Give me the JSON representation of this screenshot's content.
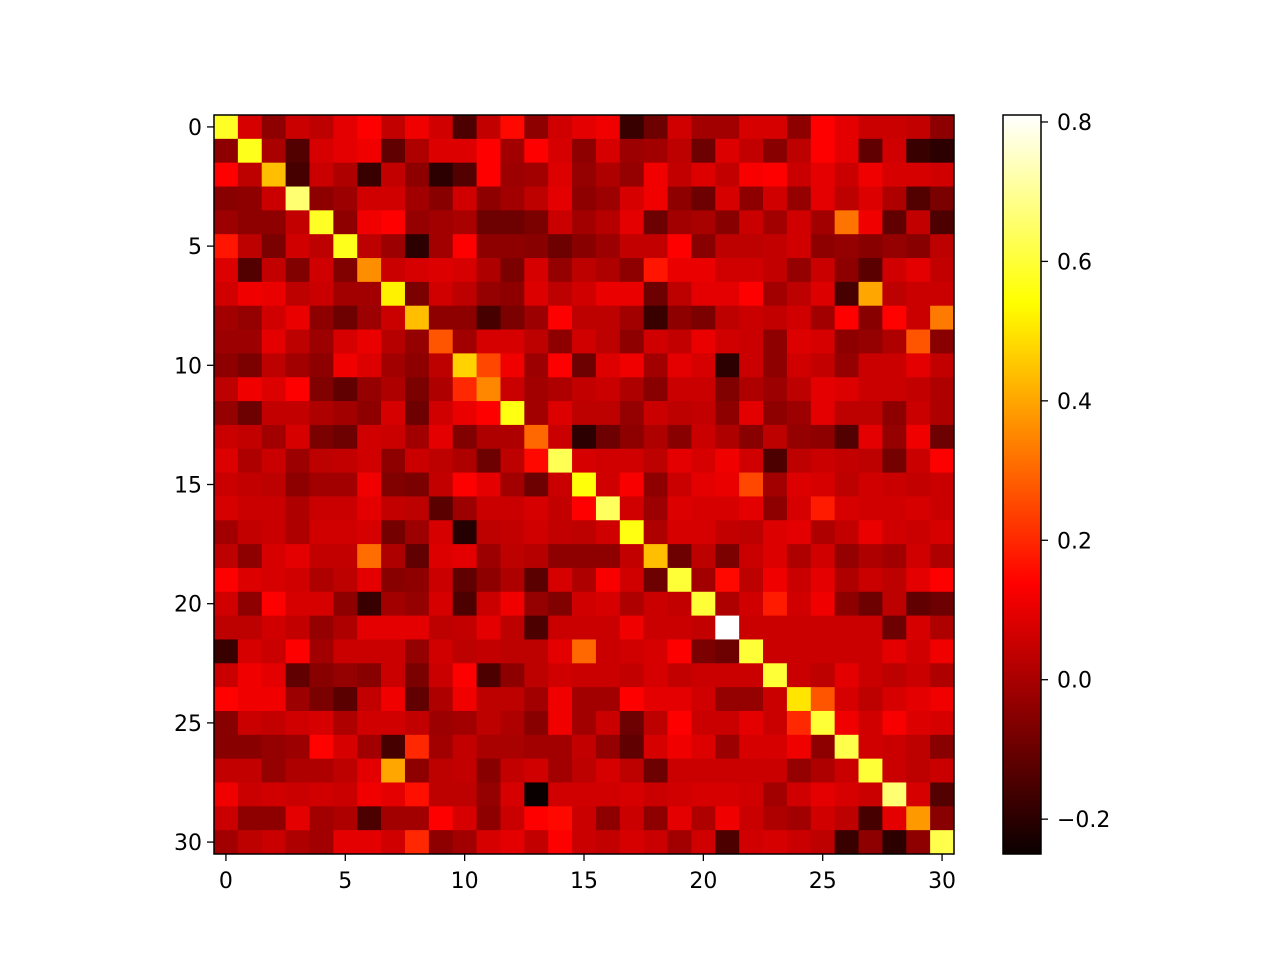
{
  "chart_data": {
    "type": "heatmap",
    "title": "",
    "xlabel": "",
    "ylabel": "",
    "colormap": "hot",
    "rows": 31,
    "cols": 31,
    "x_ticks": [
      0,
      5,
      10,
      15,
      20,
      25,
      30
    ],
    "y_ticks": [
      0,
      5,
      10,
      15,
      20,
      25,
      30
    ],
    "colorbar": {
      "range": [
        -0.25,
        0.81
      ],
      "ticks": [
        -0.2,
        0.0,
        0.2,
        0.4,
        0.6,
        0.8
      ],
      "tick_labels": [
        "−0.2",
        "0.0",
        "0.2",
        "0.4",
        "0.6",
        "0.8"
      ]
    },
    "values": [
      [
        0.58,
        0.06,
        -0.05,
        0.04,
        0.02,
        0.08,
        0.12,
        0.03,
        0.1,
        0.05,
        -0.15,
        0.03,
        0.15,
        -0.05,
        0.05,
        0.08,
        0.1,
        -0.18,
        -0.1,
        0.05,
        -0.02,
        -0.02,
        0.06,
        0.06,
        -0.05,
        0.12,
        0.08,
        0.04,
        0.04,
        0.03,
        -0.05
      ],
      [
        -0.05,
        0.57,
        -0.01,
        -0.14,
        0.06,
        0.08,
        0.1,
        -0.12,
        0.0,
        0.07,
        0.07,
        0.12,
        -0.02,
        0.13,
        0.06,
        -0.05,
        0.06,
        -0.03,
        -0.02,
        0.02,
        -0.1,
        0.07,
        0.03,
        -0.06,
        0.02,
        0.12,
        0.08,
        -0.12,
        0.05,
        -0.18,
        -0.2
      ],
      [
        0.12,
        0.02,
        0.44,
        -0.16,
        0.04,
        0.0,
        -0.18,
        0.03,
        -0.05,
        -0.2,
        -0.14,
        0.12,
        -0.03,
        -0.02,
        0.07,
        -0.04,
        0.0,
        -0.04,
        0.1,
        0.03,
        0.07,
        0.03,
        0.11,
        0.12,
        0.04,
        0.08,
        0.04,
        0.1,
        0.06,
        0.06,
        0.05
      ],
      [
        -0.06,
        -0.05,
        0.04,
        0.66,
        -0.05,
        -0.03,
        0.05,
        0.05,
        -0.02,
        -0.06,
        0.05,
        -0.05,
        -0.02,
        0.02,
        0.08,
        -0.05,
        -0.03,
        0.06,
        0.1,
        -0.05,
        -0.1,
        0.06,
        -0.05,
        0.05,
        -0.04,
        0.08,
        0.02,
        0.07,
        0.0,
        -0.14,
        -0.08
      ],
      [
        -0.03,
        -0.05,
        -0.05,
        0.03,
        0.58,
        -0.05,
        0.1,
        0.12,
        -0.04,
        -0.02,
        -0.01,
        -0.1,
        -0.1,
        -0.08,
        0.04,
        -0.02,
        0.01,
        0.08,
        -0.1,
        -0.02,
        -0.01,
        -0.06,
        0.04,
        -0.02,
        0.05,
        -0.02,
        0.32,
        0.1,
        -0.12,
        0.03,
        -0.15
      ],
      [
        0.17,
        0.02,
        -0.08,
        0.05,
        0.02,
        0.57,
        0.02,
        -0.03,
        -0.2,
        -0.02,
        0.12,
        -0.05,
        -0.05,
        -0.06,
        -0.1,
        -0.06,
        -0.03,
        0.03,
        0.03,
        0.12,
        -0.06,
        0.02,
        0.02,
        0.03,
        0.05,
        -0.05,
        -0.04,
        -0.06,
        -0.04,
        -0.06,
        0.02
      ],
      [
        0.07,
        -0.14,
        0.03,
        -0.07,
        0.05,
        -0.07,
        0.36,
        0.04,
        0.06,
        0.07,
        0.06,
        0.0,
        -0.08,
        0.06,
        -0.04,
        0.02,
        0.0,
        -0.05,
        0.17,
        0.09,
        0.09,
        0.05,
        0.05,
        0.03,
        -0.04,
        0.04,
        -0.05,
        -0.13,
        0.05,
        0.08,
        0.03
      ],
      [
        0.05,
        0.1,
        0.09,
        0.02,
        0.04,
        -0.02,
        -0.02,
        0.52,
        -0.08,
        0.05,
        0.02,
        -0.04,
        -0.05,
        0.07,
        0.02,
        0.05,
        0.09,
        0.09,
        -0.1,
        0.02,
        0.08,
        0.08,
        0.12,
        -0.02,
        0.02,
        0.07,
        -0.16,
        0.4,
        0.02,
        0.04,
        0.04
      ],
      [
        -0.02,
        -0.04,
        0.05,
        0.09,
        -0.05,
        -0.1,
        -0.03,
        0.04,
        0.44,
        -0.05,
        -0.05,
        -0.16,
        -0.08,
        -0.03,
        0.12,
        0.02,
        0.02,
        -0.02,
        -0.18,
        -0.05,
        -0.08,
        0.02,
        0.04,
        0.03,
        0.05,
        -0.02,
        0.12,
        -0.06,
        0.14,
        0.04,
        0.33
      ],
      [
        -0.03,
        -0.03,
        0.08,
        0.02,
        -0.03,
        0.06,
        0.09,
        0.01,
        -0.04,
        0.27,
        -0.02,
        0.06,
        0.06,
        0.02,
        -0.05,
        0.05,
        0.02,
        -0.05,
        0.05,
        0.03,
        0.09,
        0.05,
        0.04,
        -0.05,
        0.07,
        0.06,
        -0.05,
        -0.04,
        0.0,
        0.27,
        -0.06
      ],
      [
        -0.05,
        -0.08,
        0.02,
        -0.02,
        -0.05,
        0.1,
        0.07,
        -0.02,
        -0.05,
        0.02,
        0.47,
        0.25,
        0.1,
        -0.03,
        0.12,
        -0.1,
        0.07,
        0.1,
        -0.02,
        0.08,
        0.06,
        -0.2,
        0.04,
        -0.05,
        0.05,
        0.03,
        -0.04,
        0.04,
        0.04,
        0.08,
        0.03
      ],
      [
        0.02,
        0.1,
        0.07,
        0.12,
        -0.07,
        -0.12,
        -0.04,
        0.0,
        -0.08,
        0.0,
        0.2,
        0.35,
        0.04,
        -0.02,
        0.0,
        0.03,
        0.04,
        0.0,
        -0.06,
        0.04,
        0.04,
        -0.07,
        0.0,
        -0.03,
        0.02,
        0.08,
        0.07,
        0.04,
        0.04,
        0.03,
        0.0
      ],
      [
        -0.04,
        -0.1,
        0.03,
        0.03,
        0.0,
        -0.02,
        -0.05,
        0.06,
        -0.1,
        0.05,
        0.09,
        0.12,
        0.56,
        -0.02,
        0.07,
        0.02,
        0.02,
        -0.04,
        0.04,
        0.02,
        0.03,
        -0.05,
        0.08,
        -0.05,
        -0.03,
        0.08,
        0.02,
        0.02,
        -0.05,
        0.04,
        0.0
      ],
      [
        0.04,
        0.03,
        -0.02,
        0.06,
        -0.08,
        -0.1,
        0.05,
        0.04,
        -0.02,
        0.08,
        -0.07,
        0.0,
        0.0,
        0.3,
        0.04,
        -0.2,
        -0.1,
        -0.05,
        0.0,
        -0.06,
        0.04,
        0.0,
        -0.06,
        0.02,
        -0.04,
        -0.05,
        -0.14,
        0.08,
        -0.04,
        0.1,
        -0.1
      ],
      [
        0.07,
        0.0,
        0.04,
        -0.03,
        0.02,
        0.03,
        0.05,
        -0.05,
        0.04,
        0.02,
        0.0,
        -0.1,
        0.02,
        0.15,
        0.63,
        0.06,
        0.05,
        0.05,
        0.02,
        0.08,
        0.06,
        0.1,
        0.05,
        -0.15,
        0.02,
        0.04,
        0.03,
        0.02,
        -0.09,
        0.04,
        0.12
      ],
      [
        0.04,
        0.03,
        0.02,
        -0.05,
        -0.02,
        -0.02,
        0.1,
        -0.07,
        -0.08,
        0.03,
        0.12,
        0.08,
        -0.02,
        -0.1,
        0.04,
        0.55,
        0.05,
        0.11,
        -0.05,
        0.04,
        0.08,
        0.09,
        0.25,
        -0.02,
        0.07,
        0.06,
        0.02,
        0.05,
        0.04,
        0.03,
        0.04
      ],
      [
        0.06,
        0.04,
        0.04,
        0.0,
        0.04,
        0.04,
        0.08,
        0.03,
        0.02,
        -0.13,
        -0.03,
        0.04,
        0.04,
        0.06,
        0.03,
        0.12,
        0.64,
        0.05,
        -0.03,
        0.07,
        0.06,
        0.06,
        0.08,
        -0.05,
        0.06,
        0.18,
        0.06,
        0.05,
        0.05,
        0.06,
        0.04
      ],
      [
        -0.02,
        0.03,
        0.04,
        0.0,
        0.05,
        0.05,
        0.06,
        -0.09,
        -0.03,
        0.06,
        -0.21,
        0.02,
        0.03,
        0.05,
        0.03,
        0.02,
        0.05,
        0.56,
        0.0,
        0.06,
        0.06,
        0.03,
        0.02,
        0.07,
        0.08,
        0.0,
        0.03,
        0.09,
        0.05,
        0.04,
        0.06
      ],
      [
        0.02,
        -0.05,
        0.06,
        0.08,
        0.03,
        0.03,
        0.31,
        0.0,
        -0.12,
        0.07,
        0.08,
        -0.03,
        0.02,
        0.01,
        -0.05,
        -0.05,
        -0.05,
        0.03,
        0.44,
        -0.1,
        0.02,
        -0.08,
        0.04,
        0.07,
        0.0,
        0.05,
        -0.04,
        0.0,
        -0.02,
        0.05,
        0.0
      ],
      [
        0.12,
        0.07,
        0.06,
        0.05,
        0.0,
        0.02,
        0.08,
        -0.06,
        -0.05,
        0.04,
        -0.12,
        -0.05,
        0.0,
        -0.13,
        0.06,
        0.0,
        0.11,
        0.05,
        -0.1,
        0.6,
        -0.02,
        0.15,
        0.02,
        0.1,
        0.04,
        0.08,
        0.0,
        0.04,
        0.02,
        0.08,
        0.12
      ],
      [
        0.05,
        -0.05,
        0.12,
        0.06,
        0.06,
        -0.05,
        -0.18,
        -0.02,
        -0.04,
        0.06,
        -0.15,
        0.04,
        0.1,
        -0.04,
        -0.07,
        0.05,
        0.06,
        0.0,
        0.04,
        0.03,
        0.6,
        0.0,
        0.05,
        0.18,
        0.05,
        0.1,
        -0.05,
        -0.1,
        0.02,
        -0.12,
        -0.1
      ],
      [
        0.02,
        0.02,
        0.05,
        0.03,
        -0.04,
        0.0,
        0.08,
        0.08,
        0.08,
        0.02,
        0.03,
        0.08,
        0.02,
        -0.15,
        0.04,
        0.04,
        0.04,
        0.1,
        0.04,
        0.04,
        0.03,
        0.81,
        0.04,
        0.04,
        0.04,
        0.04,
        0.04,
        0.04,
        -0.1,
        0.06,
        0.0
      ],
      [
        -0.18,
        0.06,
        0.04,
        0.13,
        -0.02,
        0.04,
        0.04,
        0.04,
        -0.04,
        0.05,
        0.02,
        0.03,
        0.02,
        0.02,
        0.08,
        0.3,
        0.04,
        0.05,
        0.06,
        0.12,
        -0.08,
        -0.1,
        0.6,
        0.04,
        0.04,
        0.04,
        0.04,
        0.04,
        0.08,
        0.05,
        0.1
      ],
      [
        0.04,
        0.1,
        0.08,
        -0.12,
        -0.06,
        -0.04,
        -0.06,
        0.04,
        -0.08,
        0.04,
        0.12,
        -0.15,
        -0.05,
        0.02,
        0.05,
        0.04,
        0.04,
        0.03,
        0.06,
        0.03,
        0.04,
        0.04,
        0.04,
        0.6,
        0.04,
        0.02,
        0.08,
        0.04,
        0.02,
        0.04,
        0.0
      ],
      [
        0.14,
        0.1,
        0.1,
        -0.03,
        -0.08,
        -0.13,
        0.03,
        0.1,
        -0.12,
        0.0,
        0.1,
        0.02,
        0.02,
        -0.02,
        0.1,
        -0.02,
        -0.02,
        0.12,
        0.08,
        0.08,
        0.05,
        -0.04,
        -0.04,
        0.04,
        0.5,
        0.27,
        0.06,
        0.02,
        0.06,
        0.08,
        0.1
      ],
      [
        -0.06,
        0.04,
        0.03,
        0.05,
        0.06,
        0.0,
        0.05,
        0.05,
        0.03,
        -0.03,
        -0.02,
        0.02,
        0.0,
        -0.06,
        0.1,
        -0.02,
        0.04,
        -0.1,
        0.02,
        0.12,
        0.04,
        0.04,
        0.08,
        0.04,
        0.2,
        0.6,
        0.1,
        0.05,
        0.11,
        0.07,
        0.06
      ],
      [
        -0.06,
        -0.06,
        -0.04,
        -0.03,
        0.14,
        0.06,
        -0.02,
        -0.16,
        0.2,
        -0.02,
        0.03,
        -0.01,
        -0.01,
        -0.02,
        -0.02,
        0.03,
        -0.04,
        -0.12,
        0.06,
        0.1,
        0.07,
        -0.03,
        0.06,
        0.06,
        0.1,
        -0.05,
        0.62,
        0.05,
        0.04,
        0.02,
        -0.06
      ],
      [
        0.03,
        0.03,
        -0.04,
        0.0,
        0.0,
        0.02,
        0.08,
        0.4,
        -0.05,
        0.02,
        0.03,
        -0.06,
        0.03,
        0.05,
        -0.02,
        0.02,
        0.06,
        0.02,
        -0.1,
        0.04,
        0.04,
        0.04,
        0.04,
        0.04,
        -0.04,
        0.0,
        0.04,
        0.6,
        0.04,
        0.02,
        0.04
      ],
      [
        0.1,
        0.04,
        0.05,
        0.04,
        0.05,
        0.04,
        0.1,
        0.08,
        0.16,
        0.02,
        0.02,
        -0.04,
        0.06,
        -0.25,
        0.05,
        0.05,
        0.05,
        0.06,
        0.04,
        0.05,
        0.06,
        0.06,
        0.05,
        -0.02,
        0.05,
        0.08,
        0.06,
        0.04,
        0.66,
        0.06,
        -0.14
      ],
      [
        0.04,
        -0.05,
        -0.05,
        0.08,
        -0.02,
        0.0,
        -0.15,
        -0.02,
        -0.02,
        0.12,
        0.06,
        -0.05,
        0.04,
        0.12,
        0.15,
        0.04,
        -0.05,
        0.04,
        -0.05,
        0.08,
        0.0,
        0.1,
        0.04,
        0.0,
        -0.02,
        0.05,
        0.02,
        -0.16,
        0.08,
        0.38,
        -0.06
      ],
      [
        -0.02,
        0.02,
        0.04,
        0.0,
        -0.02,
        0.08,
        0.08,
        0.05,
        0.2,
        -0.05,
        -0.02,
        0.06,
        0.08,
        0.03,
        0.12,
        0.04,
        0.03,
        0.06,
        0.04,
        -0.02,
        0.05,
        -0.15,
        0.05,
        0.06,
        0.04,
        0.02,
        -0.18,
        -0.05,
        -0.2,
        -0.05,
        0.62
      ]
    ]
  }
}
